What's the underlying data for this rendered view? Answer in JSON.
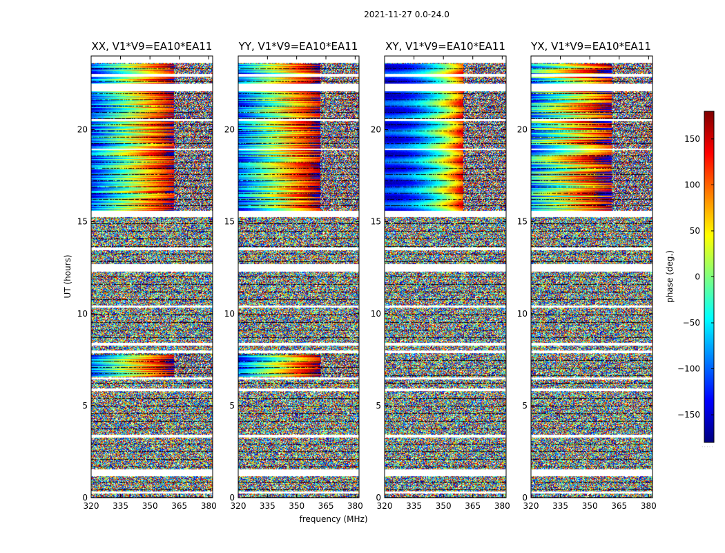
{
  "figure": {
    "title": "2021-11-27 0.0-24.0",
    "xlabel": "frequency (MHz)",
    "ylabel": "UT (hours)",
    "colorbar_label": "phase (deg.)",
    "colorbar_footer": "....."
  },
  "chart_data": {
    "type": "heatmap",
    "x_range_mhz": [
      320,
      382
    ],
    "y_range_hours": [
      0,
      24
    ],
    "x_ticks": [
      320,
      335,
      350,
      365,
      380
    ],
    "x_tick_labels": [
      "320",
      "335",
      "350",
      "365",
      "380"
    ],
    "y_ticks": [
      0,
      5,
      10,
      15,
      20
    ],
    "y_tick_labels": [
      "0",
      "5",
      "10",
      "15",
      "20"
    ],
    "color_range_deg": [
      -180,
      180
    ],
    "colorbar_ticks": [
      -150,
      -100,
      -50,
      0,
      50,
      100,
      150
    ],
    "colorbar_tick_labels": [
      "−150",
      "−100",
      "−50",
      "0",
      "50",
      "100",
      "150"
    ],
    "colormap": "jet",
    "panels": [
      {
        "name": "XX",
        "title": "XX, V1*V9=EA10*EA11",
        "good_blocks": [
          [
            15.6,
            23.6
          ],
          [
            6.6,
            7.8
          ]
        ],
        "incoherent_from_mhz": 362
      },
      {
        "name": "YY",
        "title": "YY, V1*V9=EA10*EA11",
        "good_blocks": [
          [
            15.6,
            23.6
          ],
          [
            6.6,
            7.8
          ]
        ],
        "incoherent_from_mhz": 362
      },
      {
        "name": "XY",
        "title": "XY, V1*V9=EA10*EA11",
        "good_blocks": [
          [
            15.6,
            23.6
          ]
        ],
        "incoherent_from_mhz": 360
      },
      {
        "name": "YX",
        "title": "YX, V1*V9=EA10*EA11",
        "good_blocks": [
          [
            15.6,
            23.6
          ]
        ],
        "incoherent_from_mhz": 361
      }
    ],
    "flagged_gaps_hours": [
      [
        1.2,
        1.55
      ],
      [
        3.3,
        3.45
      ],
      [
        5.8,
        5.95
      ],
      [
        6.45,
        6.55
      ],
      [
        7.85,
        8.0
      ],
      [
        8.3,
        8.45
      ],
      [
        10.35,
        10.45
      ],
      [
        12.3,
        12.7
      ],
      [
        13.45,
        13.6
      ],
      [
        15.25,
        15.6
      ],
      [
        0.25,
        0.35
      ],
      [
        18.9,
        19.0
      ],
      [
        20.5,
        20.6
      ],
      [
        22.1,
        22.5
      ],
      [
        22.9,
        23.05
      ]
    ]
  }
}
